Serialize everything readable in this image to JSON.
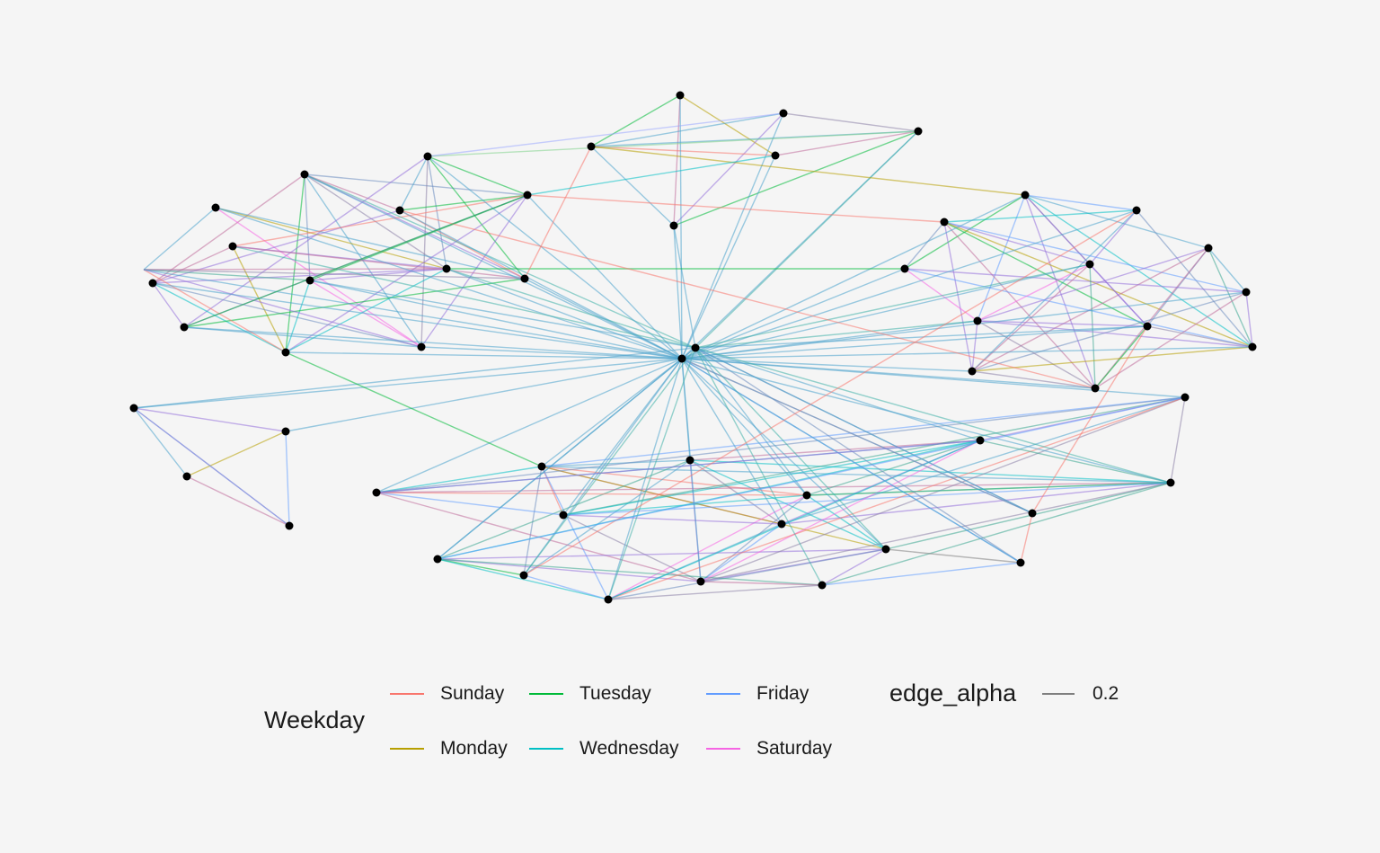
{
  "legend": {
    "color_title": "Weekday",
    "alpha_title": "edge_alpha",
    "alpha_value": "0.2",
    "alpha_color": "#7f7f7f",
    "weekdays": [
      {
        "label": "Sunday",
        "color": "#F8766D"
      },
      {
        "label": "Monday",
        "color": "#B79F00"
      },
      {
        "label": "Tuesday",
        "color": "#00BA38"
      },
      {
        "label": "Wednesday",
        "color": "#00BFC4"
      },
      {
        "label": "Friday",
        "color": "#619CFF"
      },
      {
        "label": "Saturday",
        "color": "#F564E3"
      }
    ]
  },
  "graph": {
    "node_color": "#000000",
    "edge_alpha": 0.55,
    "hub_edge_color": "#4aa3cc",
    "clusters": {
      "left": [
        0,
        1,
        2,
        3,
        4,
        5,
        6,
        7,
        8,
        9,
        10,
        11,
        12,
        13
      ],
      "top": [
        14,
        15,
        16,
        17,
        18,
        19
      ],
      "right": [
        20,
        21,
        22,
        23,
        24,
        25,
        26,
        27,
        28,
        29,
        30,
        31
      ],
      "bottom": [
        32,
        33,
        34,
        35,
        36,
        37,
        38,
        39,
        40,
        41,
        42,
        43,
        44,
        45,
        46
      ],
      "lower_left": [
        47,
        48,
        49,
        50
      ],
      "lower_right": [
        51,
        52,
        53,
        54
      ]
    }
  }
}
